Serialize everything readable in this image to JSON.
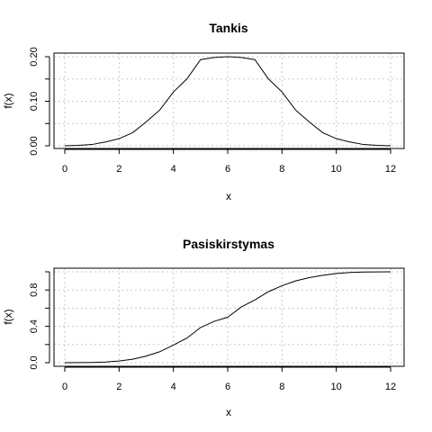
{
  "chart_data": [
    {
      "type": "line",
      "title": "Tankis",
      "xlabel": "x",
      "ylabel": "f(x)",
      "xlim": [
        0,
        12
      ],
      "ylim": [
        0,
        0.2
      ],
      "grid": true,
      "x_ticks": [
        0,
        2,
        4,
        6,
        8,
        10,
        12
      ],
      "x_tick_labels": [
        "0",
        "2",
        "4",
        "6",
        "8",
        "10",
        "12"
      ],
      "y_ticks": [
        0.0,
        0.1,
        0.2
      ],
      "y_tick_labels": [
        "0.00",
        "0.10",
        "0.20"
      ],
      "y_minor_ticks": [
        0.05,
        0.15
      ],
      "series": [
        {
          "x": [
            0,
            0.5,
            1,
            1.5,
            2,
            2.5,
            3,
            3.5,
            4,
            4.5,
            5,
            5.5,
            6,
            6.5,
            7,
            7.5,
            8,
            8.5,
            9,
            9.5,
            10,
            10.5,
            11,
            11.5,
            12
          ],
          "y": [
            0.0001,
            0.001,
            0.0029,
            0.0085,
            0.0161,
            0.0295,
            0.0537,
            0.0804,
            0.1208,
            0.1502,
            0.1934,
            0.1983,
            0.2,
            0.1983,
            0.1934,
            0.1502,
            0.1208,
            0.0804,
            0.0537,
            0.0295,
            0.0161,
            0.0085,
            0.0029,
            0.001,
            0.0001
          ]
        }
      ]
    },
    {
      "type": "line",
      "title": "Pasiskirstymas",
      "xlabel": "x",
      "ylabel": "f(x)",
      "xlim": [
        0,
        12
      ],
      "ylim": [
        0,
        1
      ],
      "grid": true,
      "x_ticks": [
        0,
        2,
        4,
        6,
        8,
        10,
        12
      ],
      "x_tick_labels": [
        "0",
        "2",
        "4",
        "6",
        "8",
        "10",
        "12"
      ],
      "y_ticks": [
        0.0,
        0.4,
        0.8
      ],
      "y_tick_labels": [
        "0.0",
        "0.4",
        "0.8"
      ],
      "y_minor_ticks": [
        0.2,
        0.6,
        1.0
      ],
      "series": [
        {
          "x": [
            0,
            0.5,
            1,
            1.5,
            2,
            2.5,
            3,
            3.5,
            4,
            4.5,
            5,
            5.5,
            6,
            6.5,
            7,
            7.5,
            8,
            8.5,
            9,
            9.5,
            10,
            10.5,
            11,
            11.5,
            12
          ],
          "y": [
            0.0,
            0.001,
            0.003,
            0.008,
            0.019,
            0.038,
            0.073,
            0.121,
            0.194,
            0.271,
            0.387,
            0.455,
            0.5,
            0.613,
            0.69,
            0.781,
            0.847,
            0.9,
            0.936,
            0.962,
            0.981,
            0.992,
            0.997,
            0.999,
            1.0
          ]
        }
      ]
    }
  ]
}
